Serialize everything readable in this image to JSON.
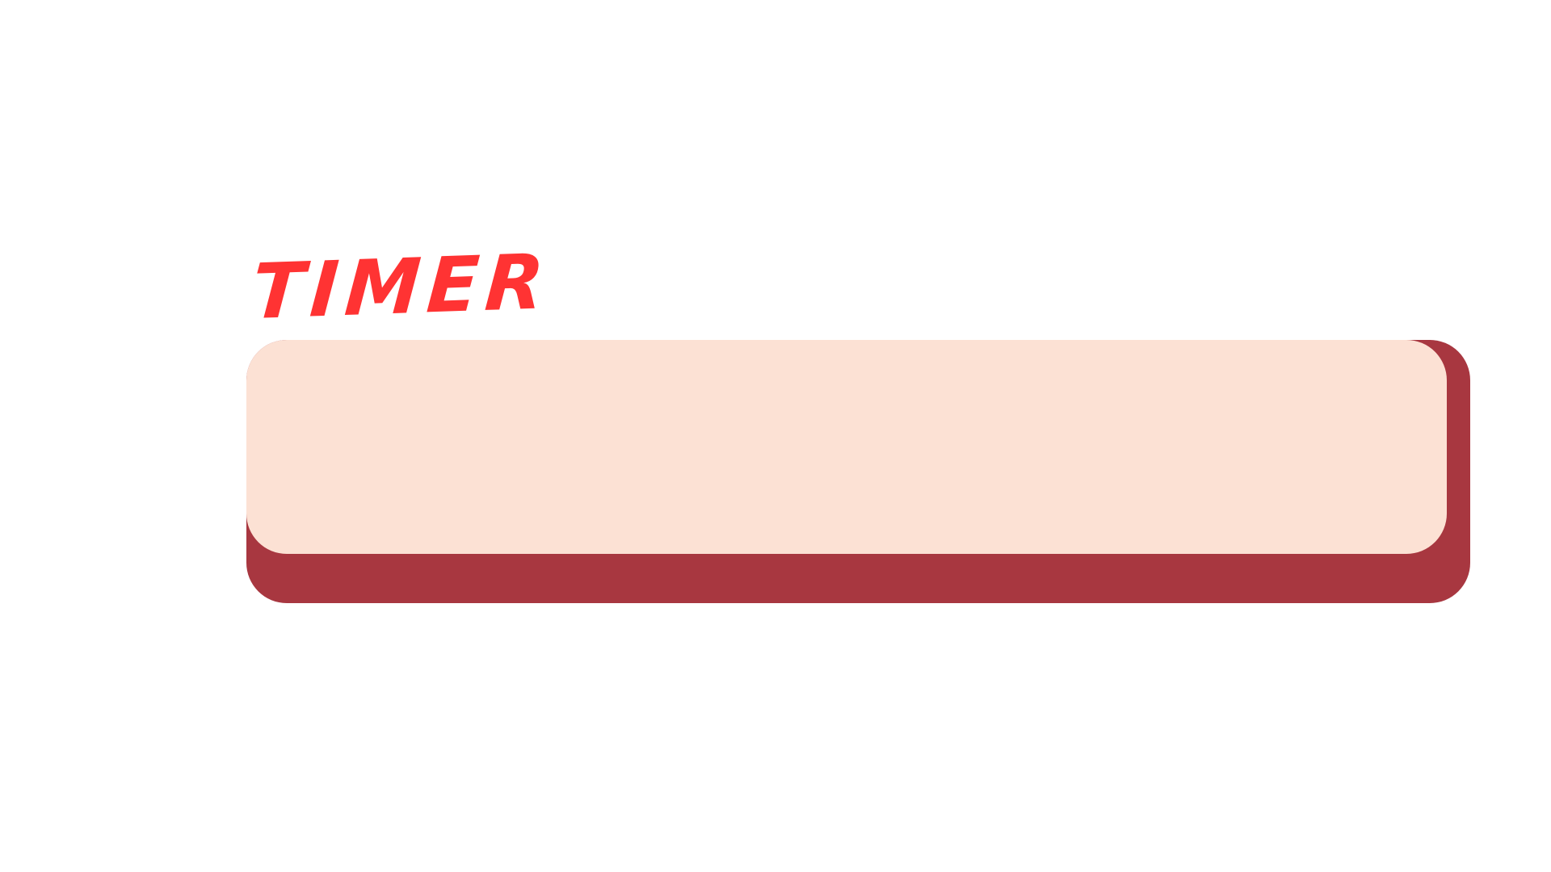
{
  "timer": {
    "title": "TIMER",
    "display_value": "",
    "colors": {
      "title": "#ff3333",
      "panel": "#fce1d4",
      "shadow": "#a83740",
      "display_text": "#a83740"
    }
  }
}
